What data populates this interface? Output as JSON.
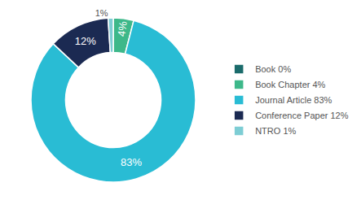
{
  "chart_data": {
    "type": "donut",
    "categories": [
      "Book 0%",
      "Book Chapter 4%",
      "Journal Article 83%",
      "Conference Paper 12%",
      "NTRO 1%"
    ],
    "values": [
      0,
      4,
      83,
      12,
      1
    ],
    "value_labels": [
      null,
      "4%",
      "83%",
      "12%",
      "1%"
    ],
    "data_labels": true,
    "colors": [
      "#1a6b6b",
      "#3db88a",
      "#29bcd4",
      "#1b2a52",
      "#7dcdd4"
    ],
    "legend": "right"
  }
}
